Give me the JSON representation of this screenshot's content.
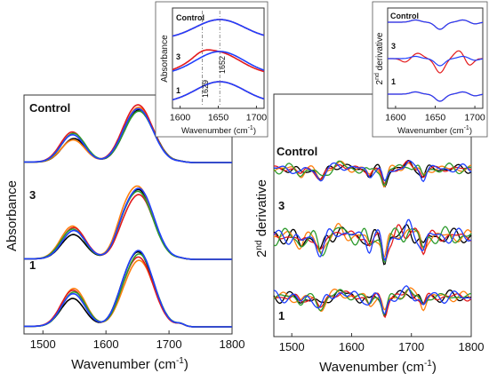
{
  "chart_data": [
    {
      "type": "line",
      "id": "absorbance-main",
      "xlabel": "Wavenumber (cm",
      "xlabel_sup": "-1",
      "xlabel_end": ")",
      "ylabel": "Absorbance",
      "xlim": [
        1470,
        1800
      ],
      "x_ticks": [
        "1500",
        "1600",
        "1700",
        "1800"
      ],
      "x_tick_values": [
        1500,
        1600,
        1700,
        1800
      ],
      "panels": [
        "Control",
        "3",
        "1"
      ],
      "series_colors": [
        "#000000",
        "#ff7f0e",
        "#e31a1c",
        "#2e9b2e",
        "#1f3fff"
      ],
      "grid": false
    },
    {
      "type": "line",
      "id": "second-derivative-main",
      "xlabel": "Wavenumber (cm",
      "xlabel_sup": "-1",
      "xlabel_end": ")",
      "ylabel_pre": "2",
      "ylabel_sup": "nd",
      "ylabel_post": " derivative",
      "xlim": [
        1470,
        1800
      ],
      "x_ticks": [
        "1500",
        "1600",
        "1700",
        "1800"
      ],
      "x_tick_values": [
        1500,
        1600,
        1700,
        1800
      ],
      "panels": [
        "Control",
        "3",
        "1"
      ],
      "series_colors": [
        "#000000",
        "#ff7f0e",
        "#e31a1c",
        "#2e9b2e",
        "#1f3fff"
      ],
      "grid": false
    },
    {
      "type": "line",
      "id": "absorbance-inset",
      "xlabel": "Wavenumber (cm",
      "xlabel_sup": "-1",
      "xlabel_end": ")",
      "ylabel": "Absorbance",
      "xlim": [
        1590,
        1710
      ],
      "x_ticks": [
        "1600",
        "1650",
        "1700"
      ],
      "x_tick_values": [
        1600,
        1650,
        1700
      ],
      "panels": [
        "Control",
        "3",
        "1"
      ],
      "reference_lines": [
        1629,
        1652
      ],
      "reference_labels": [
        "1629",
        "1652"
      ],
      "series_colors": [
        "#e31a1c",
        "#1f3fff"
      ]
    },
    {
      "type": "line",
      "id": "second-derivative-inset",
      "xlabel": "Wavenumber (cm",
      "xlabel_sup": "-1",
      "xlabel_end": ")",
      "ylabel_pre": "2",
      "ylabel_sup": "nd",
      "ylabel_post": " derivative",
      "xlim": [
        1590,
        1710
      ],
      "x_ticks": [
        "1600",
        "1650",
        "1700"
      ],
      "x_tick_values": [
        1600,
        1650,
        1700
      ],
      "panels": [
        "Control",
        "3",
        "1"
      ],
      "series_colors": [
        "#e31a1c",
        "#1f3fff"
      ]
    }
  ]
}
